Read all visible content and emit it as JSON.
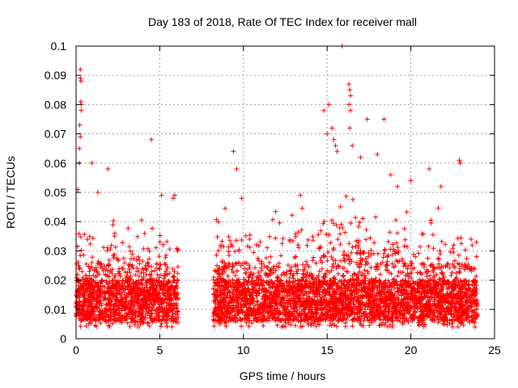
{
  "chart_data": {
    "type": "scatter",
    "title": "Day 183 of 2018, Rate Of TEC Index for receiver mall",
    "xlabel": "GPS time / hours",
    "ylabel": "ROTI / TECUs",
    "xlim": [
      0,
      25
    ],
    "ylim": [
      0,
      0.1
    ],
    "x_ticks": [
      0,
      5,
      10,
      15,
      20,
      25
    ],
    "y_ticks": [
      0,
      0.01,
      0.02,
      0.03,
      0.04,
      0.05,
      0.06,
      0.07,
      0.08,
      0.09,
      0.1
    ],
    "x_tick_labels": [
      "0",
      "5",
      "10",
      "15",
      "20",
      "25"
    ],
    "y_tick_labels": [
      "0",
      "0.01",
      "0.02",
      "0.03",
      "0.04",
      "0.05",
      "0.06",
      "0.07",
      "0.08",
      "0.09",
      "0.1"
    ],
    "grid": true,
    "marker": "plus",
    "color": "#ff0000",
    "segments": [
      {
        "x_start": 0.0,
        "x_end": 6.1
      },
      {
        "x_start": 8.2,
        "x_end": 24.0
      }
    ],
    "outliers": [
      {
        "x": 0.25,
        "y": 0.092
      },
      {
        "x": 0.25,
        "y": 0.089
      },
      {
        "x": 0.3,
        "y": 0.088
      },
      {
        "x": 0.28,
        "y": 0.081
      },
      {
        "x": 0.32,
        "y": 0.08
      },
      {
        "x": 0.3,
        "y": 0.078
      },
      {
        "x": 0.22,
        "y": 0.073
      },
      {
        "x": 0.25,
        "y": 0.069
      },
      {
        "x": 0.2,
        "y": 0.065
      },
      {
        "x": 0.2,
        "y": 0.06
      },
      {
        "x": 0.95,
        "y": 0.06
      },
      {
        "x": 1.9,
        "y": 0.058
      },
      {
        "x": 4.5,
        "y": 0.068
      },
      {
        "x": 9.4,
        "y": 0.064
      },
      {
        "x": 9.6,
        "y": 0.058
      },
      {
        "x": 15.9,
        "y": 0.1
      },
      {
        "x": 14.8,
        "y": 0.078
      },
      {
        "x": 15.1,
        "y": 0.08
      },
      {
        "x": 16.3,
        "y": 0.087
      },
      {
        "x": 16.35,
        "y": 0.085
      },
      {
        "x": 16.4,
        "y": 0.083
      },
      {
        "x": 16.3,
        "y": 0.08
      },
      {
        "x": 16.4,
        "y": 0.078
      },
      {
        "x": 16.35,
        "y": 0.072
      },
      {
        "x": 17.4,
        "y": 0.075
      },
      {
        "x": 18.4,
        "y": 0.075
      },
      {
        "x": 15.3,
        "y": 0.072
      },
      {
        "x": 15.4,
        "y": 0.068
      },
      {
        "x": 15.5,
        "y": 0.066
      },
      {
        "x": 15.0,
        "y": 0.07
      },
      {
        "x": 15.6,
        "y": 0.064
      },
      {
        "x": 16.5,
        "y": 0.066
      },
      {
        "x": 17.0,
        "y": 0.062
      },
      {
        "x": 18.0,
        "y": 0.063
      },
      {
        "x": 21.1,
        "y": 0.058
      },
      {
        "x": 22.9,
        "y": 0.061
      },
      {
        "x": 22.95,
        "y": 0.06
      },
      {
        "x": 20.0,
        "y": 0.054
      },
      {
        "x": 18.8,
        "y": 0.056
      },
      {
        "x": 19.2,
        "y": 0.052
      },
      {
        "x": 0.1,
        "y": 0.051
      },
      {
        "x": 5.1,
        "y": 0.049
      },
      {
        "x": 5.8,
        "y": 0.048
      },
      {
        "x": 5.9,
        "y": 0.049
      },
      {
        "x": 1.3,
        "y": 0.05
      },
      {
        "x": 9.9,
        "y": 0.048
      },
      {
        "x": 13.4,
        "y": 0.049
      },
      {
        "x": 21.8,
        "y": 0.052
      }
    ]
  }
}
